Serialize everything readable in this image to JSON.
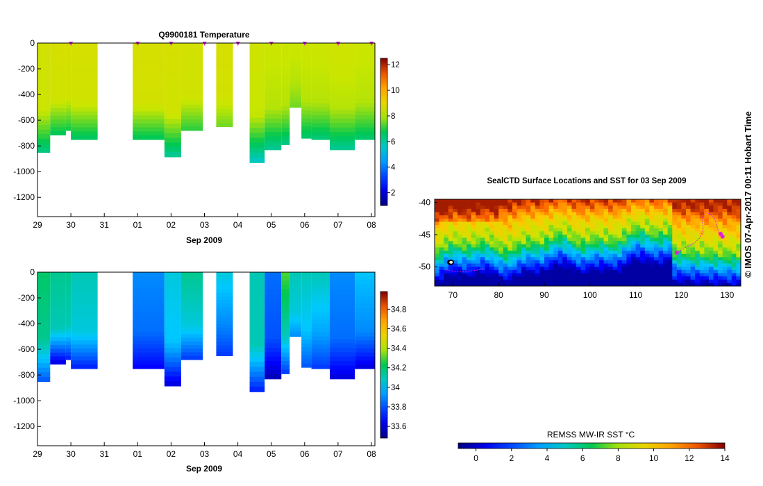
{
  "chart_data": [
    {
      "id": "temp",
      "type": "heatmap",
      "title": "Q9900181  Temperature",
      "xlabel": "Sep 2009",
      "x_ticks": [
        "29",
        "30",
        "31",
        "01",
        "02",
        "03",
        "04",
        "05",
        "06",
        "07",
        "08"
      ],
      "y_ticks": [
        "0",
        "-200",
        "-400",
        "-600",
        "-800",
        "-1000",
        "-1200"
      ],
      "ylim": [
        -1350,
        0
      ],
      "colorbar": {
        "ticks": [
          "2",
          "4",
          "6",
          "8",
          "10",
          "12"
        ],
        "range": [
          1,
          12.5
        ]
      },
      "profiles": [
        {
          "t0": 0.0,
          "t1": 0.38,
          "depth": 850,
          "top": 8.4,
          "mid": 8.2,
          "bottom": 6.2
        },
        {
          "t0": 0.38,
          "t1": 0.85,
          "depth": 715,
          "top": 8.5,
          "mid": 8.3,
          "bottom": 6.6
        },
        {
          "t0": 0.85,
          "t1": 1.0,
          "depth": 680,
          "top": 8.5,
          "mid": 8.3,
          "bottom": 6.8
        },
        {
          "t0": 1.0,
          "t1": 1.8,
          "depth": 750,
          "top": 8.5,
          "mid": 8.3,
          "bottom": 6.5
        },
        {
          "t0": 2.85,
          "t1": 3.8,
          "depth": 750,
          "top": 8.5,
          "mid": 8.4,
          "bottom": 6.6
        },
        {
          "t0": 3.8,
          "t1": 4.3,
          "depth": 885,
          "top": 8.5,
          "mid": 8.3,
          "bottom": 6.0
        },
        {
          "t0": 4.3,
          "t1": 4.95,
          "depth": 680,
          "top": 8.4,
          "mid": 8.3,
          "bottom": 7.0
        },
        {
          "t0": 5.35,
          "t1": 5.85,
          "depth": 650,
          "top": 8.5,
          "mid": 8.4,
          "bottom": 7.5
        },
        {
          "t0": 6.35,
          "t1": 6.8,
          "depth": 930,
          "top": 8.3,
          "mid": 8.1,
          "bottom": 5.5
        },
        {
          "t0": 6.8,
          "t1": 7.3,
          "depth": 830,
          "top": 8.2,
          "mid": 8.0,
          "bottom": 6.0
        },
        {
          "t0": 7.3,
          "t1": 7.55,
          "depth": 790,
          "top": 8.2,
          "mid": 8.0,
          "bottom": 6.2
        },
        {
          "t0": 7.55,
          "t1": 7.9,
          "depth": 500,
          "top": 8.2,
          "mid": 8.0,
          "bottom": 7.5
        },
        {
          "t0": 7.9,
          "t1": 8.2,
          "depth": 740,
          "top": 8.2,
          "mid": 8.0,
          "bottom": 6.4
        },
        {
          "t0": 8.2,
          "t1": 8.75,
          "depth": 750,
          "top": 8.2,
          "mid": 8.0,
          "bottom": 6.3
        },
        {
          "t0": 8.75,
          "t1": 9.5,
          "depth": 830,
          "top": 8.3,
          "mid": 8.0,
          "bottom": 6.0
        },
        {
          "t0": 9.5,
          "t1": 10.1,
          "depth": 750,
          "top": 8.2,
          "mid": 8.0,
          "bottom": 6.4
        }
      ],
      "markers": [
        1.0,
        3.0,
        4.0,
        5.0,
        6.0,
        7.0,
        8.0,
        9.0,
        10.0
      ]
    },
    {
      "id": "sal",
      "type": "heatmap",
      "xlabel": "Sep 2009",
      "x_ticks": [
        "29",
        "30",
        "31",
        "01",
        "02",
        "03",
        "04",
        "05",
        "06",
        "07",
        "08"
      ],
      "y_ticks": [
        "0",
        "-200",
        "-400",
        "-600",
        "-800",
        "-1000",
        "-1200"
      ],
      "ylim": [
        -1350,
        0
      ],
      "colorbar": {
        "ticks": [
          "33.6",
          "33.8",
          "34",
          "34.2",
          "34.4",
          "34.6",
          "34.8"
        ],
        "range": [
          33.48,
          34.98
        ]
      },
      "profiles": [
        {
          "t0": 0.0,
          "t1": 0.38,
          "depth": 850,
          "top": 34.2,
          "mid": 34.15,
          "bottom": 33.8
        },
        {
          "t0": 0.38,
          "t1": 0.85,
          "depth": 715,
          "top": 34.15,
          "mid": 34.1,
          "bottom": 33.6
        },
        {
          "t0": 0.85,
          "t1": 1.0,
          "depth": 680,
          "top": 34.15,
          "mid": 34.1,
          "bottom": 33.7
        },
        {
          "t0": 1.0,
          "t1": 1.8,
          "depth": 750,
          "top": 34.1,
          "mid": 34.05,
          "bottom": 33.7
        },
        {
          "t0": 2.85,
          "t1": 3.8,
          "depth": 750,
          "top": 33.9,
          "mid": 33.85,
          "bottom": 33.65
        },
        {
          "t0": 3.8,
          "t1": 4.3,
          "depth": 885,
          "top": 34.05,
          "mid": 34.0,
          "bottom": 33.6
        },
        {
          "t0": 4.3,
          "t1": 4.95,
          "depth": 680,
          "top": 34.15,
          "mid": 34.05,
          "bottom": 33.75
        },
        {
          "t0": 5.35,
          "t1": 5.85,
          "depth": 650,
          "top": 34.05,
          "mid": 33.9,
          "bottom": 33.75
        },
        {
          "t0": 6.35,
          "t1": 6.8,
          "depth": 930,
          "top": 34.1,
          "mid": 34.1,
          "bottom": 33.7
        },
        {
          "t0": 6.8,
          "t1": 7.3,
          "depth": 830,
          "top": 33.85,
          "mid": 33.8,
          "bottom": 33.55
        },
        {
          "t0": 7.3,
          "t1": 7.55,
          "depth": 790,
          "top": 34.3,
          "mid": 34.1,
          "bottom": 33.75
        },
        {
          "t0": 7.55,
          "t1": 7.9,
          "depth": 500,
          "top": 34.1,
          "mid": 34.05,
          "bottom": 33.9
        },
        {
          "t0": 7.9,
          "t1": 8.2,
          "depth": 740,
          "top": 34.1,
          "mid": 34.0,
          "bottom": 33.8
        },
        {
          "t0": 8.2,
          "t1": 8.75,
          "depth": 750,
          "top": 34.1,
          "mid": 33.95,
          "bottom": 33.75
        },
        {
          "t0": 8.75,
          "t1": 9.5,
          "depth": 830,
          "top": 33.9,
          "mid": 33.85,
          "bottom": 33.6
        },
        {
          "t0": 9.5,
          "t1": 10.1,
          "depth": 750,
          "top": 34.0,
          "mid": 33.9,
          "bottom": 33.6
        }
      ]
    },
    {
      "id": "map",
      "type": "heatmap",
      "title": "SealCTD Surface Locations and SST for 03 Sep 2009",
      "x_ticks": [
        "70",
        "80",
        "90",
        "100",
        "110",
        "120",
        "130"
      ],
      "y_ticks": [
        "-40",
        "-45",
        "-50"
      ],
      "xlim": [
        66,
        133
      ],
      "ylim": [
        -53,
        -39.5
      ],
      "colorbar": {
        "label": "REMSS MW-IR SST °C",
        "ticks": [
          "0",
          "2",
          "4",
          "6",
          "8",
          "10",
          "12",
          "14"
        ],
        "range": [
          -1,
          14
        ]
      },
      "track": [
        [
          128.8,
          -45.5
        ],
        [
          128.4,
          -45.0
        ],
        [
          128.1,
          -44.4
        ],
        [
          127.8,
          -43.7
        ],
        [
          127.5,
          -42.9
        ],
        [
          127.0,
          -42.3
        ],
        [
          126.2,
          -41.8
        ],
        [
          125.4,
          -41.6
        ],
        [
          124.7,
          -42.1
        ],
        [
          124.6,
          -43.1
        ],
        [
          124.8,
          -44.2
        ],
        [
          124.2,
          -45.4
        ],
        [
          123.0,
          -46.2
        ],
        [
          121.8,
          -46.7
        ],
        [
          120.6,
          -47.1
        ],
        [
          119.8,
          -47.5
        ],
        [
          119.2,
          -47.8
        ]
      ],
      "points": [
        [
          119.0,
          -47.8
        ],
        [
          129.0,
          -45.3
        ],
        [
          128.6,
          -44.9
        ]
      ]
    }
  ],
  "copyright": "© IMOS 07-Apr-2017 00:11 Hobart Time"
}
